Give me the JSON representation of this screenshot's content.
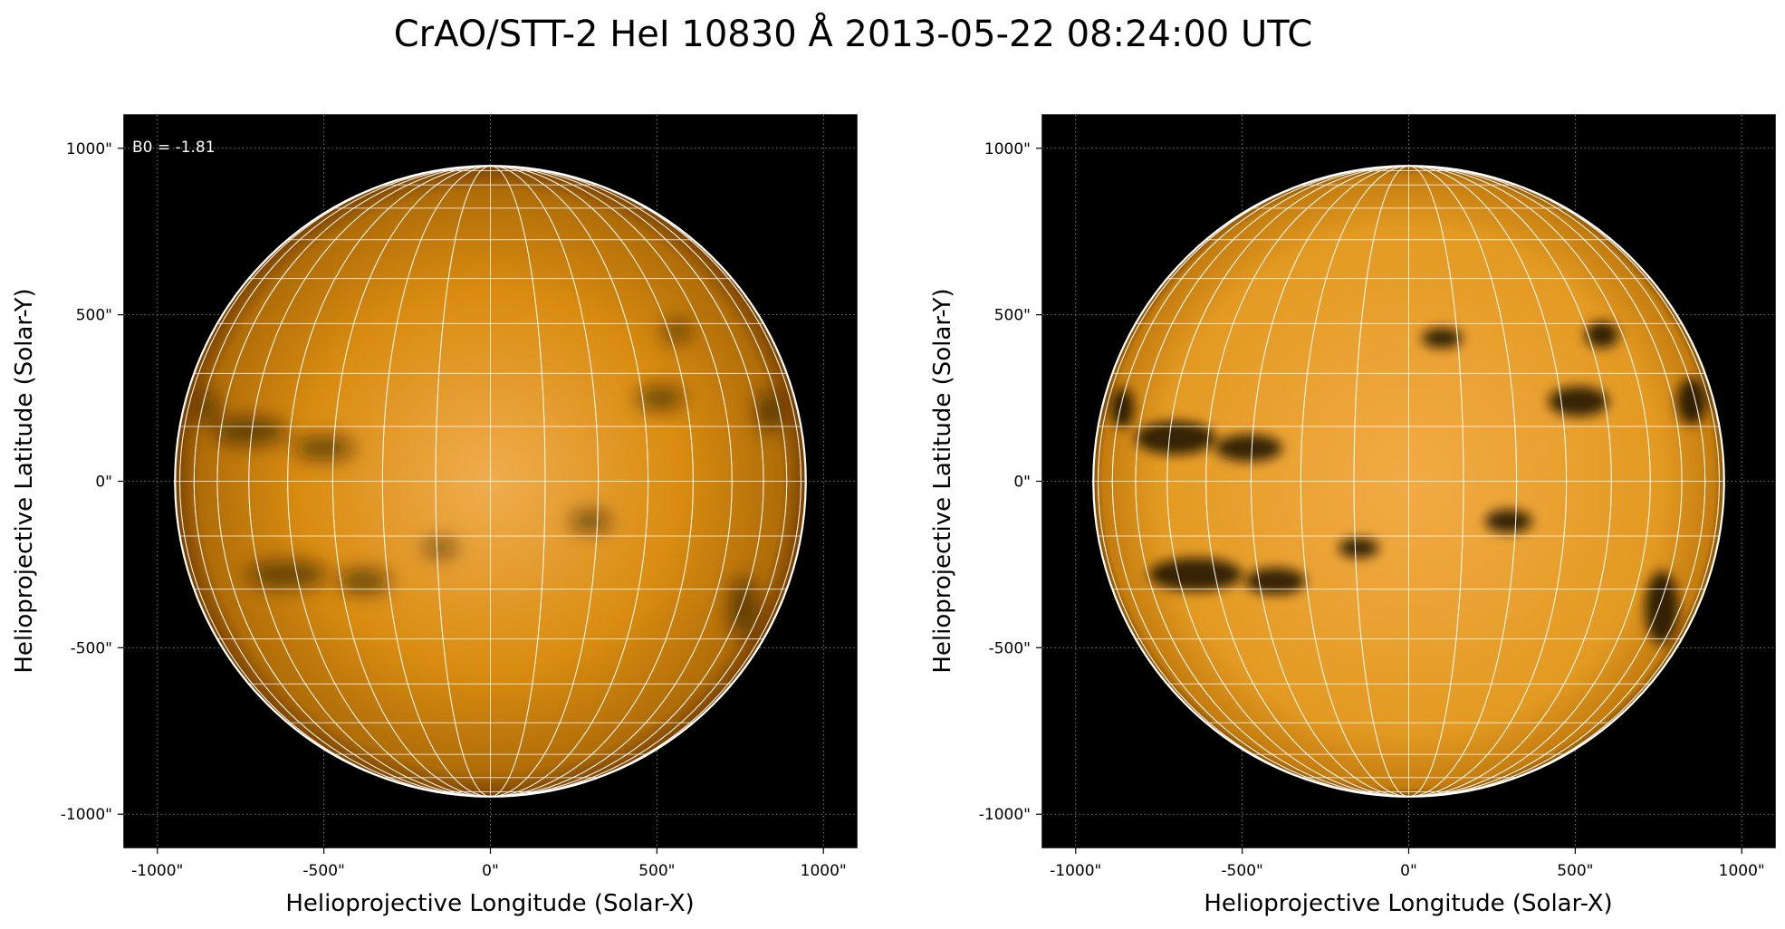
{
  "figure": {
    "title": "CrAO/STT-2 HeI 10830 Å 2013-05-22 08:24:00 UTC"
  },
  "colors": {
    "disk_bright": "#f0ad4e",
    "disk_mid": "#d98c10",
    "disk_limb": "#7a4200",
    "dark_feature": "#1a0d00",
    "background": "#000000",
    "grid": "#ffffff"
  },
  "panels": [
    {
      "name": "left",
      "annotation": "B0 = -1.81",
      "xlabel": "Helioprojective Longitude (Solar-X)",
      "ylabel": "Helioprojective Latitude (Solar-Y)",
      "xticks": [
        "-1000\"",
        "-500\"",
        "0\"",
        "500\"",
        "1000\""
      ],
      "yticks": [
        "1000\"",
        "500\"",
        "0\"",
        "-500\"",
        "-1000\""
      ],
      "tick_values": [
        -1000,
        -500,
        0,
        500,
        1000
      ],
      "xlim": [
        -1100,
        1100
      ],
      "ylim": [
        -1100,
        1100
      ],
      "solar_radius_arcsec": 947,
      "contrast": "low",
      "dark_features": [
        {
          "x": 510,
          "y": 250,
          "rx": 70,
          "ry": 35
        },
        {
          "x": 560,
          "y": 450,
          "rx": 40,
          "ry": 30
        },
        {
          "x": 840,
          "y": 210,
          "rx": 40,
          "ry": 60
        },
        {
          "x": -850,
          "y": 220,
          "rx": 30,
          "ry": 50
        },
        {
          "x": -720,
          "y": 150,
          "rx": 110,
          "ry": 40
        },
        {
          "x": -500,
          "y": 100,
          "rx": 90,
          "ry": 35
        },
        {
          "x": -610,
          "y": -280,
          "rx": 120,
          "ry": 40
        },
        {
          "x": -380,
          "y": -300,
          "rx": 80,
          "ry": 35
        },
        {
          "x": 760,
          "y": -380,
          "rx": 40,
          "ry": 90
        },
        {
          "x": 300,
          "y": -120,
          "rx": 60,
          "ry": 30
        },
        {
          "x": -150,
          "y": -200,
          "rx": 50,
          "ry": 25
        }
      ]
    },
    {
      "name": "right",
      "annotation": "",
      "xlabel": "Helioprojective Longitude (Solar-X)",
      "ylabel": "Helioprojective Latitude (Solar-Y)",
      "xticks": [
        "-1000\"",
        "-500\"",
        "0\"",
        "500\"",
        "1000\""
      ],
      "yticks": [
        "1000\"",
        "500\"",
        "0\"",
        "-500\"",
        "-1000\""
      ],
      "tick_values": [
        -1000,
        -500,
        0,
        500,
        1000
      ],
      "xlim": [
        -1100,
        1100
      ],
      "ylim": [
        -1100,
        1100
      ],
      "solar_radius_arcsec": 947,
      "contrast": "high",
      "dark_features": [
        {
          "x": 510,
          "y": 240,
          "rx": 90,
          "ry": 45
        },
        {
          "x": 580,
          "y": 440,
          "rx": 50,
          "ry": 40
        },
        {
          "x": 850,
          "y": 240,
          "rx": 45,
          "ry": 70
        },
        {
          "x": -860,
          "y": 220,
          "rx": 35,
          "ry": 60
        },
        {
          "x": -700,
          "y": 130,
          "rx": 120,
          "ry": 50
        },
        {
          "x": -480,
          "y": 100,
          "rx": 100,
          "ry": 40
        },
        {
          "x": -640,
          "y": -280,
          "rx": 140,
          "ry": 50
        },
        {
          "x": -400,
          "y": -300,
          "rx": 90,
          "ry": 40
        },
        {
          "x": 760,
          "y": -380,
          "rx": 50,
          "ry": 110
        },
        {
          "x": 300,
          "y": -120,
          "rx": 70,
          "ry": 35
        },
        {
          "x": -150,
          "y": -200,
          "rx": 60,
          "ry": 30
        },
        {
          "x": 100,
          "y": 430,
          "rx": 60,
          "ry": 30
        }
      ]
    }
  ]
}
